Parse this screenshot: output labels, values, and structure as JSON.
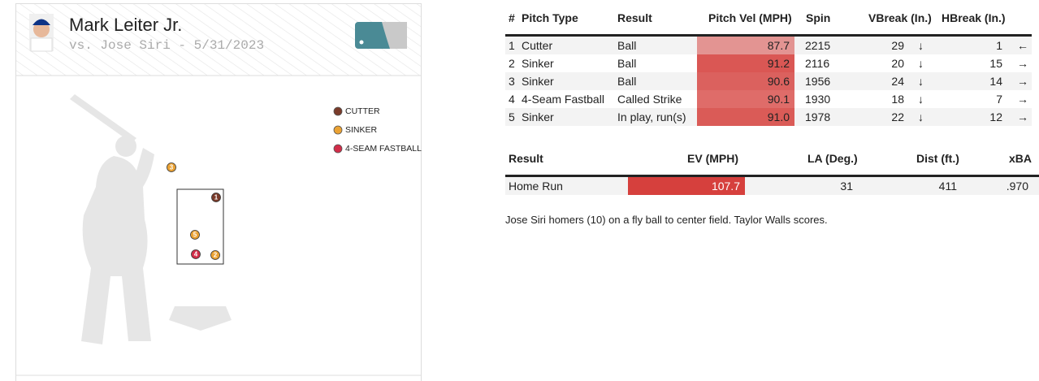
{
  "header": {
    "title": "Mark Leiter Jr.",
    "subtitle": "vs. Jose Siri - 5/31/2023"
  },
  "legend": [
    {
      "name": "CUTTER",
      "color": "#7a3b2a"
    },
    {
      "name": "SINKER",
      "color": "#eba233"
    },
    {
      "name": "4-SEAM FASTBALL",
      "color": "#d22d49"
    }
  ],
  "pitch_table": {
    "columns": [
      "#",
      "Pitch Type",
      "Result",
      "Pitch Vel (MPH)",
      "Spin",
      "VBreak (In.)",
      "HBreak (In.)"
    ],
    "rows": [
      [
        "1",
        "Cutter",
        "Ball",
        "87.7",
        "2215",
        "29",
        "↓",
        "1",
        "←"
      ],
      [
        "2",
        "Sinker",
        "Ball",
        "91.2",
        "2116",
        "20",
        "↓",
        "15",
        "→"
      ],
      [
        "3",
        "Sinker",
        "Ball",
        "90.6",
        "1956",
        "24",
        "↓",
        "14",
        "→"
      ],
      [
        "4",
        "4-Seam Fastball",
        "Called Strike",
        "90.1",
        "1930",
        "18",
        "↓",
        "7",
        "→"
      ],
      [
        "5",
        "Sinker",
        "In play, run(s)",
        "91.0",
        "1978",
        "22",
        "↓",
        "12",
        "→"
      ]
    ]
  },
  "result_table": {
    "columns": [
      "Result",
      "EV (MPH)",
      "LA (Deg.)",
      "Dist (ft.)",
      "xBA"
    ],
    "rows": [
      [
        "Home Run",
        "107.7",
        "31",
        "411",
        ".970"
      ]
    ]
  },
  "description": "Jose Siri homers (10) on a fly ball to center field. Taylor Walls scores."
}
